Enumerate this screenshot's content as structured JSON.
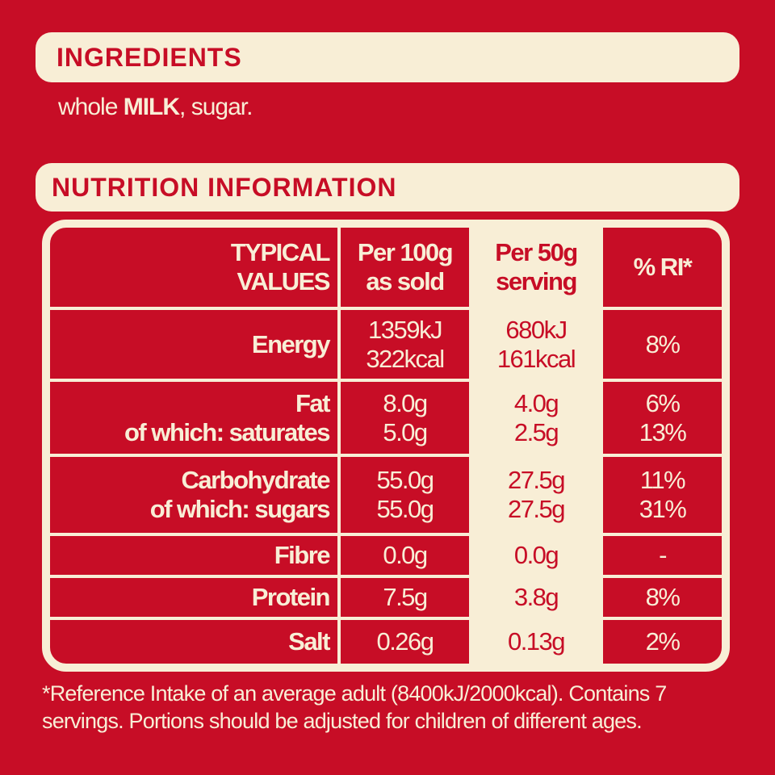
{
  "ingredients": {
    "title": "INGREDIENTS",
    "text_parts": [
      "whole ",
      "MILK",
      ", sugar."
    ]
  },
  "nutrition": {
    "title": "NUTRITION INFORMATION",
    "header": [
      [
        "TYPICAL",
        "VALUES"
      ],
      [
        "Per 100g",
        "as sold"
      ],
      [
        "Per 50g",
        "serving"
      ],
      [
        "% RI*"
      ]
    ],
    "rows": [
      [
        [
          "Energy"
        ],
        [
          "1359kJ",
          "322kcal"
        ],
        [
          "680kJ",
          "161kcal"
        ],
        [
          "8%"
        ]
      ],
      [
        [
          "Fat",
          "of which: saturates"
        ],
        [
          "8.0g",
          "5.0g"
        ],
        [
          "4.0g",
          "2.5g"
        ],
        [
          "6%",
          "13%"
        ]
      ],
      [
        [
          "Carbohydrate",
          "of which: sugars"
        ],
        [
          "55.0g",
          "55.0g"
        ],
        [
          "27.5g",
          "27.5g"
        ],
        [
          "11%",
          "31%"
        ]
      ],
      [
        [
          "Fibre"
        ],
        [
          "0.0g"
        ],
        [
          "0.0g"
        ],
        [
          "-"
        ]
      ],
      [
        [
          "Protein"
        ],
        [
          "7.5g"
        ],
        [
          "3.8g"
        ],
        [
          "8%"
        ]
      ],
      [
        [
          "Salt"
        ],
        [
          "0.26g"
        ],
        [
          "0.13g"
        ],
        [
          "2%"
        ]
      ]
    ],
    "footnote": "*Reference Intake of an average adult (8400kJ/2000kcal). Contains 7 servings. Portions should be adjusted for children of different ages."
  }
}
